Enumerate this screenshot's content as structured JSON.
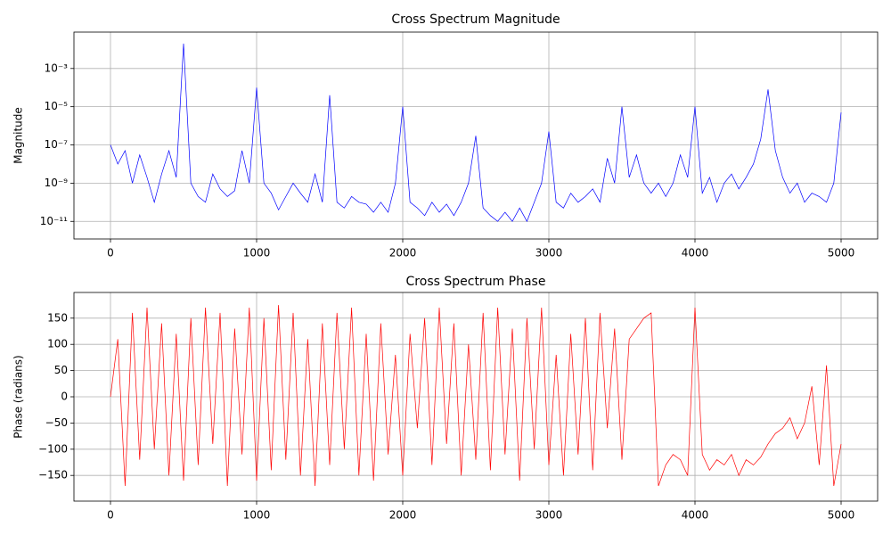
{
  "chart_data": [
    {
      "type": "line",
      "title": "Cross Spectrum Magnitude",
      "ylabel": "Magnitude",
      "yscale": "log",
      "grid": true,
      "color": "#0000ff",
      "x": [
        0,
        50,
        100,
        150,
        200,
        250,
        300,
        350,
        400,
        450,
        500,
        550,
        600,
        650,
        700,
        750,
        800,
        850,
        900,
        950,
        1000,
        1050,
        1100,
        1150,
        1200,
        1250,
        1300,
        1350,
        1400,
        1450,
        1500,
        1550,
        1600,
        1650,
        1700,
        1750,
        1800,
        1850,
        1900,
        1950,
        2000,
        2050,
        2100,
        2150,
        2200,
        2250,
        2300,
        2350,
        2400,
        2450,
        2500,
        2550,
        2600,
        2650,
        2700,
        2750,
        2800,
        2850,
        2900,
        2950,
        3000,
        3050,
        3100,
        3150,
        3200,
        3250,
        3300,
        3350,
        3400,
        3450,
        3500,
        3550,
        3600,
        3650,
        3700,
        3750,
        3800,
        3850,
        3900,
        3950,
        4000,
        4050,
        4100,
        4150,
        4200,
        4250,
        4300,
        4350,
        4400,
        4450,
        4500,
        4550,
        4600,
        4650,
        4700,
        4750,
        4800,
        4850,
        4900,
        4950,
        5000
      ],
      "values": [
        1e-07,
        1e-08,
        5e-08,
        1e-09,
        3e-08,
        2e-09,
        1e-10,
        3e-09,
        5e-08,
        2e-09,
        0.02,
        1e-09,
        2e-10,
        1e-10,
        3e-09,
        5e-10,
        2e-10,
        4e-10,
        5e-08,
        1e-09,
        0.0001,
        1e-09,
        3e-10,
        4e-11,
        2e-10,
        1e-09,
        3e-10,
        1e-10,
        3e-09,
        1e-10,
        4e-05,
        1e-10,
        5e-11,
        2e-10,
        1e-10,
        8e-11,
        3e-11,
        1e-10,
        3e-11,
        1e-09,
        1e-05,
        1e-10,
        5e-11,
        2e-11,
        1e-10,
        3e-11,
        8e-11,
        2e-11,
        1e-10,
        1e-09,
        3e-07,
        5e-11,
        2e-11,
        1e-11,
        3e-11,
        1e-11,
        5e-11,
        1e-11,
        1e-10,
        1e-09,
        5e-07,
        1e-10,
        5e-11,
        3e-10,
        1e-10,
        2e-10,
        5e-10,
        1e-10,
        2e-08,
        1e-09,
        1e-05,
        2e-09,
        3e-08,
        1e-09,
        3e-10,
        1e-09,
        2e-10,
        1e-09,
        3e-08,
        2e-09,
        1e-05,
        3e-10,
        2e-09,
        1e-10,
        1e-09,
        3e-09,
        5e-10,
        2e-09,
        1e-08,
        2e-07,
        8e-05,
        5e-08,
        2e-09,
        3e-10,
        1e-09,
        1e-10,
        3e-10,
        2e-10,
        1e-10,
        1e-09,
        5e-06
      ],
      "xlim": [
        -250,
        5250
      ],
      "xticks": [
        0,
        1000,
        2000,
        3000,
        4000,
        5000
      ],
      "ylim": [
        1.2e-12,
        0.08
      ],
      "yticks": [
        {
          "value": 1e-11,
          "label": "10⁻¹¹"
        },
        {
          "value": 1e-09,
          "label": "10⁻⁹"
        },
        {
          "value": 1e-07,
          "label": "10⁻⁷"
        },
        {
          "value": 1e-05,
          "label": "10⁻⁵"
        },
        {
          "value": 0.001,
          "label": "10⁻³"
        }
      ]
    },
    {
      "type": "line",
      "title": "Cross Spectrum Phase",
      "ylabel": "Phase (radians)",
      "grid": true,
      "color": "#ff0000",
      "x": [
        0,
        50,
        100,
        150,
        200,
        250,
        300,
        350,
        400,
        450,
        500,
        550,
        600,
        650,
        700,
        750,
        800,
        850,
        900,
        950,
        1000,
        1050,
        1100,
        1150,
        1200,
        1250,
        1300,
        1350,
        1400,
        1450,
        1500,
        1550,
        1600,
        1650,
        1700,
        1750,
        1800,
        1850,
        1900,
        1950,
        2000,
        2050,
        2100,
        2150,
        2200,
        2250,
        2300,
        2350,
        2400,
        2450,
        2500,
        2550,
        2600,
        2650,
        2700,
        2750,
        2800,
        2850,
        2900,
        2950,
        3000,
        3050,
        3100,
        3150,
        3200,
        3250,
        3300,
        3350,
        3400,
        3450,
        3500,
        3550,
        3600,
        3650,
        3700,
        3750,
        3800,
        3850,
        3900,
        3950,
        4000,
        4050,
        4100,
        4150,
        4200,
        4250,
        4300,
        4350,
        4400,
        4450,
        4500,
        4550,
        4600,
        4650,
        4700,
        4750,
        4800,
        4850,
        4900,
        4950,
        5000
      ],
      "values": [
        0,
        110,
        -170,
        160,
        -120,
        170,
        -100,
        140,
        -150,
        120,
        -160,
        150,
        -130,
        170,
        -90,
        160,
        -170,
        130,
        -110,
        170,
        -160,
        150,
        -140,
        175,
        -120,
        160,
        -150,
        110,
        -170,
        140,
        -130,
        160,
        -100,
        170,
        -150,
        120,
        -160,
        140,
        -110,
        80,
        -150,
        120,
        -60,
        150,
        -130,
        170,
        -90,
        140,
        -150,
        100,
        -120,
        160,
        -140,
        170,
        -110,
        130,
        -160,
        150,
        -100,
        170,
        -130,
        80,
        -150,
        120,
        -110,
        150,
        -140,
        160,
        -60,
        130,
        -120,
        110,
        130,
        150,
        160,
        -170,
        -130,
        -110,
        -120,
        -150,
        170,
        -110,
        -140,
        -120,
        -130,
        -110,
        -150,
        -120,
        -130,
        -115,
        -90,
        -70,
        -60,
        -40,
        -80,
        -50,
        20,
        -130,
        60,
        -170,
        -90
      ],
      "xlim": [
        -250,
        5250
      ],
      "xticks": [
        0,
        1000,
        2000,
        3000,
        4000,
        5000
      ],
      "ylim": [
        -199,
        199
      ],
      "yticks": [
        {
          "value": -150,
          "label": "−150"
        },
        {
          "value": -100,
          "label": "−100"
        },
        {
          "value": -50,
          "label": "−50"
        },
        0,
        50,
        100,
        150
      ]
    }
  ]
}
